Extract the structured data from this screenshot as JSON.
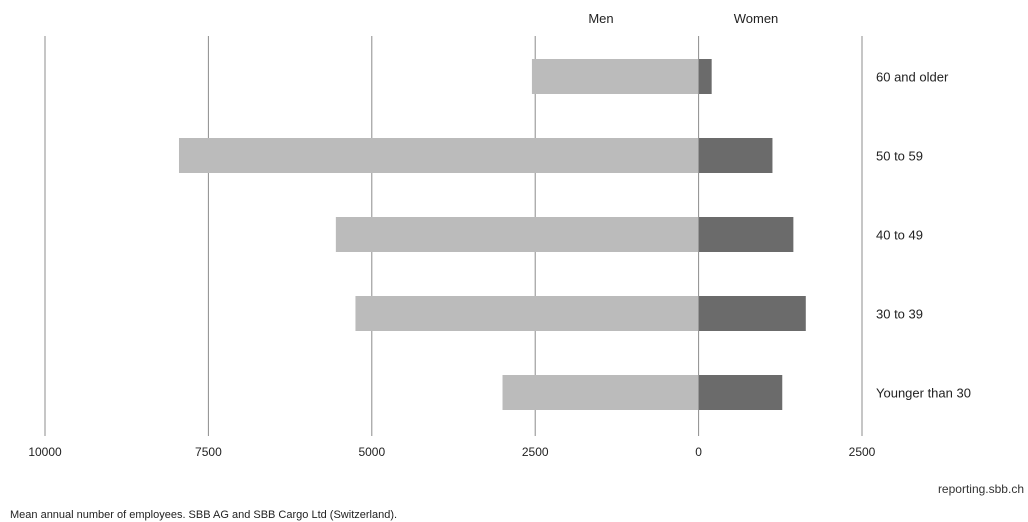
{
  "chart_data": {
    "type": "bar",
    "orientation": "horizontal-population-pyramid",
    "categories": [
      "60 and older",
      "50 to 59",
      "40 to 49",
      "30 to 39",
      "Younger than 30"
    ],
    "series": [
      {
        "name": "Men",
        "values": [
          2550,
          7950,
          5550,
          5250,
          3000
        ],
        "color": "#bbbbbb"
      },
      {
        "name": "Women",
        "values": [
          200,
          1130,
          1450,
          1640,
          1280
        ],
        "color": "#6b6b6b"
      }
    ],
    "x_ticks": [
      {
        "value": -10000,
        "label": "10000"
      },
      {
        "value": -7500,
        "label": "7500"
      },
      {
        "value": -5000,
        "label": "5000"
      },
      {
        "value": -2500,
        "label": "2500"
      },
      {
        "value": 0,
        "label": "0"
      },
      {
        "value": 2500,
        "label": "2500"
      }
    ],
    "xlim": [
      -10000,
      2500
    ],
    "grid": true
  },
  "source": "reporting.sbb.ch",
  "footnote": "Mean annual number of employees. SBB AG and SBB Cargo Ltd (Switzerland)."
}
